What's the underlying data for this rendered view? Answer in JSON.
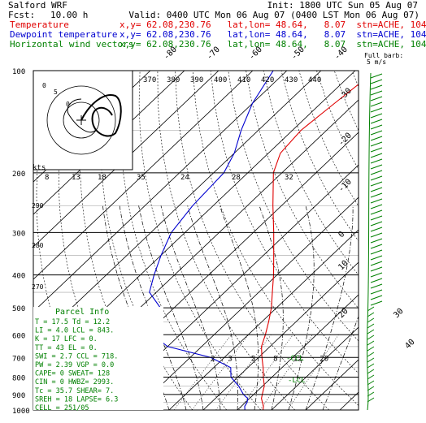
{
  "header": {
    "model": "Salford WRF",
    "init": "Init: 1800 UTC Sun 05 Aug 07",
    "fcst_label": "Fcst:",
    "fcst_value": "10.00 h",
    "valid": "Valid: 0400 UTC Mon 06 Aug 07 (0400 LST Mon 06 Aug 07)"
  },
  "legend": [
    {
      "name": "Temperature",
      "info": "x,y= 62.08,230.76   lat,lon= 48.64,   8.07  stn=ACHE, 1046",
      "color": "#e00000"
    },
    {
      "name": "Dewpoint temperature",
      "info": "x,y= 62.08,230.76   lat,lon= 48.64,   8.07  stn=ACHE, 1046",
      "color": "#0000d0"
    },
    {
      "name": "Horizontal wind vectors",
      "info": "x,y= 62.08,230.76   lat,lon= 48.64,   8.07  stn=ACHE, 1046",
      "color": "#008000"
    }
  ],
  "barb_key": {
    "title": "Full barb:",
    "value": "5 m/s"
  },
  "parcel": {
    "title": "Parcel Info",
    "rows": [
      "T   =  17.5 Td =  12.2",
      "LI  =   4.0 LCL =  843.",
      "K   =    17 LFC =    0.",
      "TT  =    43 EL  =    0.",
      "SWI =   2.7 CCL =  718.",
      "PW  =  2.39 VGP =   0.0",
      "CAPE=     0 SWEAT= 128",
      "CIN =     0 HWBZ= 2993.",
      "Tc  =  35.7 SHEAR=   7.",
      "SREH =   18 LAPSE=  6.3",
      "CELL = 251/05"
    ]
  },
  "chart_data": {
    "type": "line",
    "y_scale": "log-pressure",
    "ylim": [
      1000,
      100
    ],
    "yticks": [
      100,
      200,
      300,
      400,
      500,
      600,
      700,
      800,
      900,
      1000
    ],
    "isotherm_labels": [
      "-80",
      "-70",
      "-60",
      "-50",
      "-40",
      "-30",
      "-20",
      "-10",
      "0",
      "10",
      "20",
      "30",
      "40"
    ],
    "theta_labels": [
      "370",
      "380",
      "390",
      "400",
      "410",
      "420",
      "430",
      "440"
    ],
    "hodograph_labels": [
      "kts",
      "8",
      "13",
      "18",
      "35",
      "24",
      "28",
      "32"
    ],
    "side_labels": [
      "290",
      "280",
      "270"
    ],
    "mixing_ratio_labels": [
      "2",
      "3",
      "5",
      "8",
      "12",
      "20"
    ],
    "annotations": [
      "-CCL",
      "-LCL"
    ],
    "series": [
      {
        "name": "Temperature",
        "color": "#e00000",
        "p": [
          1000,
          975,
          950,
          925,
          900,
          850,
          800,
          750,
          700,
          650,
          600,
          550,
          500,
          450,
          400,
          350,
          300,
          250,
          200,
          175,
          150,
          125,
          100
        ],
        "t": [
          17.5,
          16.5,
          15.0,
          13.5,
          12.5,
          10.5,
          7.5,
          4.5,
          1.0,
          -2.5,
          -5.0,
          -8.0,
          -11.5,
          -16.0,
          -21.0,
          -27.0,
          -34.0,
          -42.5,
          -52.5,
          -56.5,
          -57.5,
          -56.0,
          -54.0
        ]
      },
      {
        "name": "Dewpoint temperature",
        "color": "#0000d0",
        "p": [
          1000,
          975,
          950,
          925,
          900,
          850,
          800,
          750,
          700,
          650,
          600,
          550,
          500,
          450,
          400,
          350,
          300,
          250,
          200,
          175,
          150,
          125,
          100
        ],
        "t": [
          12.2,
          11.0,
          10.5,
          9.5,
          7.0,
          3.0,
          -2.0,
          -5.0,
          -14.0,
          -30.0,
          -38.0,
          -40.0,
          -44.0,
          -52.0,
          -56.0,
          -60.0,
          -64.0,
          -66.0,
          -67.0,
          -70.0,
          -75.0,
          -80.0,
          -84.0
        ]
      }
    ]
  }
}
